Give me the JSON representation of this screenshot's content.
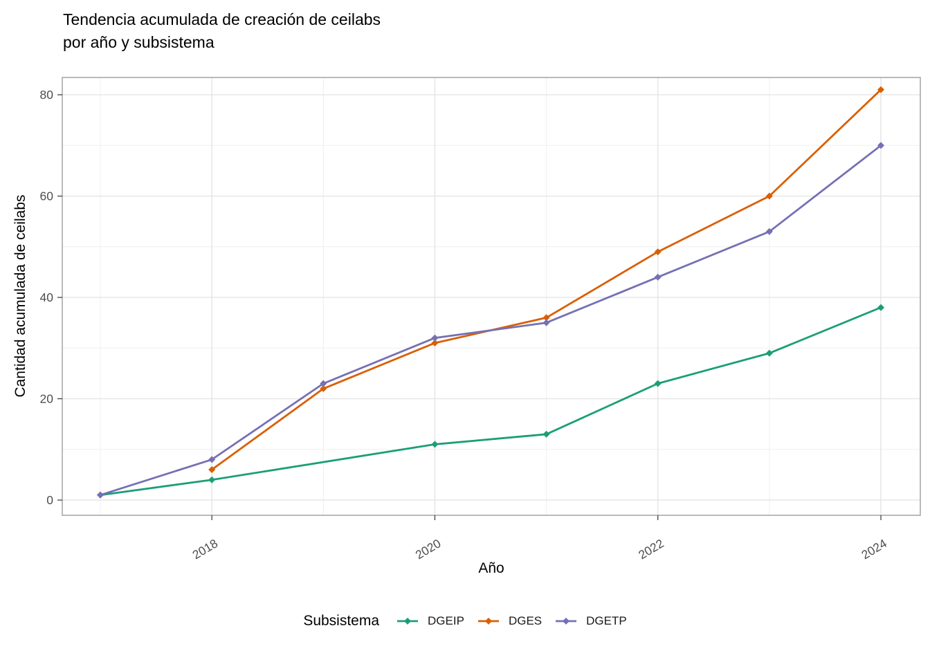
{
  "chart_data": {
    "type": "line",
    "title_lines": [
      "Tendencia acumulada de creación de ceilabs",
      "por año y subsistema"
    ],
    "xlabel": "Año",
    "ylabel": "Cantidad acumulada de ceilabs",
    "legend_title": "Subsistema",
    "legend_position": "bottom",
    "grid": "major and minor, light gray on white",
    "xlim": [
      2016.65,
      2024.35
    ],
    "ylim": [
      -3,
      83.4
    ],
    "x_major_ticks": [
      2018,
      2020,
      2022,
      2024
    ],
    "x_tick_labels": [
      "2018",
      "2020",
      "2022",
      "2024"
    ],
    "x_minor_gridlines": [
      2017,
      2019,
      2021,
      2023
    ],
    "y_major_ticks": [
      0,
      20,
      40,
      60,
      80
    ],
    "y_tick_labels": [
      "0",
      "20",
      "40",
      "60",
      "80"
    ],
    "y_minor_gridlines": [
      10,
      30,
      50,
      70
    ],
    "series": [
      {
        "name": "DGEIP",
        "color": "#1B9E77",
        "x": [
          2017,
          2018,
          2020,
          2021,
          2022,
          2023,
          2024
        ],
        "values": [
          1,
          4,
          11,
          13,
          23,
          29,
          38
        ]
      },
      {
        "name": "DGES",
        "color": "#D95F02",
        "x": [
          2018,
          2019,
          2020,
          2021,
          2022,
          2023,
          2024
        ],
        "values": [
          6,
          22,
          31,
          36,
          49,
          60,
          81
        ]
      },
      {
        "name": "DGETP",
        "color": "#7570B3",
        "x": [
          2017,
          2018,
          2019,
          2020,
          2021,
          2022,
          2023,
          2024
        ],
        "values": [
          1,
          8,
          23,
          32,
          35,
          44,
          53,
          70
        ]
      }
    ],
    "colors": {
      "grid_major": "#E2E2E2",
      "grid_minor": "#EFEFEF",
      "panel_border": "#9C9C9C",
      "tick_mark": "#333333",
      "tick_label": "#4D4D4D",
      "text": "#000000",
      "background": "#FFFFFF"
    }
  }
}
